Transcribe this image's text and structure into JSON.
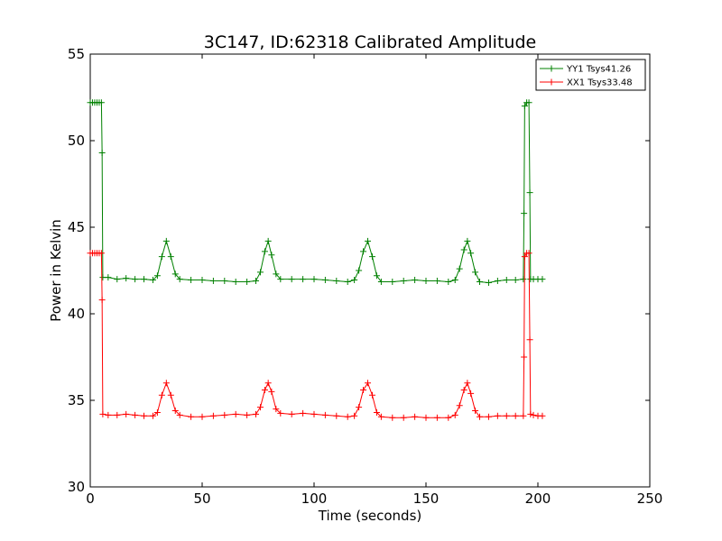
{
  "chart_data": {
    "type": "line",
    "title": "3C147, ID:62318 Calibrated Amplitude",
    "xlabel": "Time (seconds)",
    "ylabel": "Power in Kelvin",
    "xlim": [
      0,
      250
    ],
    "ylim": [
      30,
      55
    ],
    "xticks": [
      "0",
      "50",
      "100",
      "150",
      "200",
      "250"
    ],
    "yticks": [
      "30",
      "35",
      "40",
      "45",
      "50",
      "55"
    ],
    "grid": false,
    "legend_position": "top-right",
    "series": [
      {
        "name": "YY1 Tsys41.26",
        "color": "#008000",
        "points": [
          [
            0,
            52.2
          ],
          [
            1,
            52.2
          ],
          [
            2,
            52.2
          ],
          [
            3,
            52.2
          ],
          [
            4,
            52.2
          ],
          [
            5,
            52.2
          ],
          [
            5.3,
            49.3
          ],
          [
            5.6,
            42.1
          ],
          [
            8,
            42.1
          ],
          [
            12,
            42.0
          ],
          [
            16,
            42.05
          ],
          [
            20,
            42.0
          ],
          [
            24,
            42.0
          ],
          [
            28,
            41.95
          ],
          [
            30,
            42.2
          ],
          [
            32,
            43.3
          ],
          [
            34,
            44.2
          ],
          [
            36,
            43.3
          ],
          [
            38,
            42.3
          ],
          [
            40,
            42.0
          ],
          [
            45,
            41.95
          ],
          [
            50,
            41.95
          ],
          [
            55,
            41.9
          ],
          [
            60,
            41.9
          ],
          [
            65,
            41.85
          ],
          [
            70,
            41.85
          ],
          [
            74,
            41.9
          ],
          [
            76,
            42.4
          ],
          [
            78,
            43.6
          ],
          [
            79.5,
            44.2
          ],
          [
            81,
            43.4
          ],
          [
            83,
            42.3
          ],
          [
            85,
            42.0
          ],
          [
            90,
            42.0
          ],
          [
            95,
            42.0
          ],
          [
            100,
            42.0
          ],
          [
            105,
            41.95
          ],
          [
            110,
            41.9
          ],
          [
            115,
            41.85
          ],
          [
            118,
            41.95
          ],
          [
            120,
            42.5
          ],
          [
            122,
            43.6
          ],
          [
            124,
            44.2
          ],
          [
            126,
            43.3
          ],
          [
            128,
            42.2
          ],
          [
            130,
            41.85
          ],
          [
            135,
            41.85
          ],
          [
            140,
            41.9
          ],
          [
            145,
            41.95
          ],
          [
            150,
            41.9
          ],
          [
            155,
            41.9
          ],
          [
            160,
            41.85
          ],
          [
            163,
            41.95
          ],
          [
            165,
            42.6
          ],
          [
            167,
            43.7
          ],
          [
            168.5,
            44.2
          ],
          [
            170,
            43.5
          ],
          [
            172,
            42.4
          ],
          [
            174,
            41.85
          ],
          [
            178,
            41.8
          ],
          [
            182,
            41.9
          ],
          [
            186,
            41.95
          ],
          [
            190,
            41.95
          ],
          [
            193.5,
            42.0
          ],
          [
            193.8,
            45.8
          ],
          [
            194.1,
            52.0
          ],
          [
            195,
            52.2
          ],
          [
            196,
            52.2
          ],
          [
            196.4,
            47.0
          ],
          [
            196.7,
            42.0
          ],
          [
            198,
            42.0
          ],
          [
            200,
            42.0
          ],
          [
            202,
            42.0
          ]
        ]
      },
      {
        "name": "XX1 Tsys33.48",
        "color": "#ff0000",
        "points": [
          [
            0,
            43.5
          ],
          [
            1,
            43.5
          ],
          [
            2,
            43.5
          ],
          [
            3,
            43.5
          ],
          [
            4,
            43.5
          ],
          [
            5,
            43.5
          ],
          [
            5.3,
            40.8
          ],
          [
            5.6,
            34.2
          ],
          [
            8,
            34.15
          ],
          [
            12,
            34.15
          ],
          [
            16,
            34.2
          ],
          [
            20,
            34.15
          ],
          [
            24,
            34.1
          ],
          [
            28,
            34.1
          ],
          [
            30,
            34.3
          ],
          [
            32,
            35.3
          ],
          [
            34,
            36.0
          ],
          [
            36,
            35.3
          ],
          [
            38,
            34.4
          ],
          [
            40,
            34.15
          ],
          [
            45,
            34.05
          ],
          [
            50,
            34.05
          ],
          [
            55,
            34.1
          ],
          [
            60,
            34.15
          ],
          [
            65,
            34.2
          ],
          [
            70,
            34.15
          ],
          [
            74,
            34.2
          ],
          [
            76,
            34.6
          ],
          [
            78,
            35.6
          ],
          [
            79.5,
            36.0
          ],
          [
            81,
            35.5
          ],
          [
            83,
            34.5
          ],
          [
            85,
            34.25
          ],
          [
            90,
            34.2
          ],
          [
            95,
            34.25
          ],
          [
            100,
            34.2
          ],
          [
            105,
            34.15
          ],
          [
            110,
            34.1
          ],
          [
            115,
            34.05
          ],
          [
            118,
            34.1
          ],
          [
            120,
            34.6
          ],
          [
            122,
            35.6
          ],
          [
            124,
            36.0
          ],
          [
            126,
            35.3
          ],
          [
            128,
            34.3
          ],
          [
            130,
            34.05
          ],
          [
            135,
            34.0
          ],
          [
            140,
            34.0
          ],
          [
            145,
            34.05
          ],
          [
            150,
            34.0
          ],
          [
            155,
            34.0
          ],
          [
            160,
            34.0
          ],
          [
            163,
            34.15
          ],
          [
            165,
            34.7
          ],
          [
            167,
            35.6
          ],
          [
            168.5,
            36.0
          ],
          [
            170,
            35.4
          ],
          [
            172,
            34.4
          ],
          [
            174,
            34.05
          ],
          [
            178,
            34.05
          ],
          [
            182,
            34.1
          ],
          [
            186,
            34.1
          ],
          [
            190,
            34.1
          ],
          [
            193.5,
            34.1
          ],
          [
            193.8,
            37.5
          ],
          [
            194.1,
            43.3
          ],
          [
            195,
            43.5
          ],
          [
            196,
            43.5
          ],
          [
            196.4,
            38.5
          ],
          [
            196.7,
            34.2
          ],
          [
            198,
            34.15
          ],
          [
            200,
            34.1
          ],
          [
            202,
            34.1
          ]
        ]
      }
    ]
  }
}
